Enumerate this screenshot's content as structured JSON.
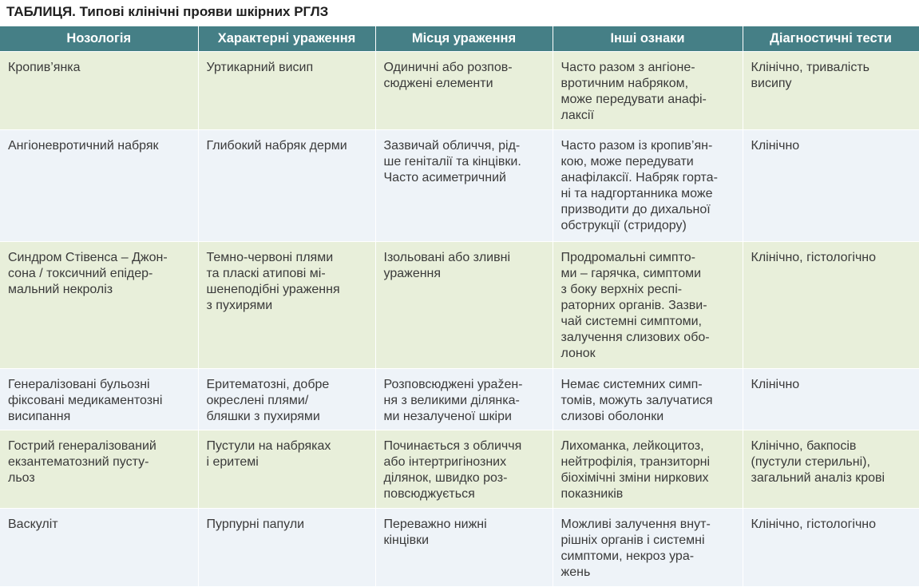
{
  "title": "ТАБЛИЦЯ. Типові клінічні прояви шкірних РГЛЗ",
  "colors": {
    "header": "#457f86",
    "row_green": "#e8efda",
    "row_blue": "#eef3f8"
  },
  "headers": [
    "Нозологія",
    "Характерні ураження",
    "Місця ураження",
    "Інші ознаки",
    "Діагностичні тести"
  ],
  "rows": [
    [
      [
        "Кропив’янка"
      ],
      [
        "Уртикарний висип"
      ],
      [
        "Одиничні або розпов-",
        "сюджені елементи"
      ],
      [
        "Часто разом з ангіоне-",
        "вротичним набряком,",
        "може передувати анафі-",
        "лаксії"
      ],
      [
        "Клінічно, тривалість",
        "висипу"
      ]
    ],
    [
      [
        "Ангіоневротичний набряк"
      ],
      [
        "Глибокий набряк дерми"
      ],
      [
        "Зазвичай обличчя, рід-",
        "ше геніталії та кінцівки.",
        "Часто асиметричний"
      ],
      [
        "Часто разом із кропив’ян-",
        "кою, може передувати",
        "анафілаксії. Набряк горта-",
        "ні та надгортанника може",
        "призводити до дихальної",
        "обструкції (стридору)"
      ],
      [
        "Клінічно"
      ]
    ],
    [
      [
        "Синдром Стівенса – Джон-",
        "сона / токсичний епідер-",
        "мальний некроліз"
      ],
      [
        "Темно-червоні плями",
        "та пласкі атипові мі-",
        "шенеподібні ураження",
        "з пухирями"
      ],
      [
        "Ізольовані або зливні",
        "ураження"
      ],
      [
        "Продромальні симпто-",
        "ми – гарячка, симптоми",
        "з боку верхніх респі-",
        "раторних органів. Зазви-",
        "чай системні симптоми,",
        "залучення слизових обо-",
        "лонок"
      ],
      [
        "Клінічно, гістологічно"
      ]
    ],
    [
      [
        "Генералізовані бульозні",
        "фіксовані медикаментозні",
        "висипання"
      ],
      [
        "Еритематозні, добре",
        "окреслені плями/",
        "бляшки з пухирями"
      ],
      [
        "Розповсюджені урažен-",
        "ня з великими ділянка-",
        "ми незалученої шкіри"
      ],
      [
        "Немає системних симп-",
        "томів, можуть залучатися",
        "слизові оболонки"
      ],
      [
        "Клінічно"
      ]
    ],
    [
      [
        "Гострий генералізований",
        "екзантематозний пусту-",
        "льоз"
      ],
      [
        "Пустули на набряках",
        "і еритемі"
      ],
      [
        "Починається з обличчя",
        "або інтертригінозних",
        "ділянок, швидко роз-",
        "повсюджується"
      ],
      [
        "Лихоманка, лейкоцитоз,",
        "нейтрофілія, транзиторні",
        "біохімічні зміни ниркових",
        "показників"
      ],
      [
        "Клінічно, бакпосів",
        "(пустули стерильні),",
        "загальний аналіз крові"
      ]
    ],
    [
      [
        "Васкуліт"
      ],
      [
        "Пурпурні папули"
      ],
      [
        "Переважно нижні",
        "кінцівки"
      ],
      [
        "Можливі залучення внут-",
        "рішніх органів і системні",
        "симптоми, некроз ура-",
        "жень"
      ],
      [
        "Клінічно, гістологічно"
      ]
    ]
  ]
}
